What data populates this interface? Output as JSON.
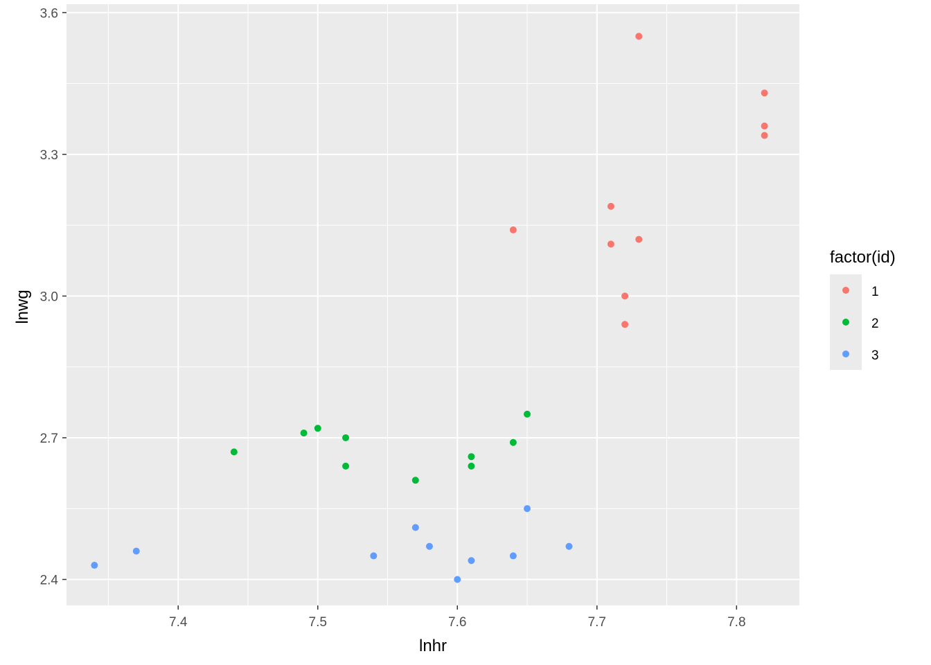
{
  "chart_data": {
    "type": "scatter",
    "xlabel": "lnhr",
    "ylabel": "lnwg",
    "xlim": [
      7.32,
      7.845
    ],
    "ylim": [
      2.345,
      3.618
    ],
    "x_ticks": [
      "7.4",
      "7.5",
      "7.6",
      "7.7",
      "7.8"
    ],
    "x_tick_values": [
      7.4,
      7.5,
      7.6,
      7.7,
      7.8
    ],
    "y_ticks": [
      "2.4",
      "2.7",
      "3.0",
      "3.3",
      "3.6"
    ],
    "y_tick_values": [
      2.4,
      2.7,
      3.0,
      3.3,
      3.6
    ],
    "grid": true,
    "legend": {
      "title": "factor(id)",
      "position": "right"
    },
    "series": [
      {
        "name": "1",
        "color": "#F8766D",
        "points": [
          [
            7.73,
            3.55
          ],
          [
            7.82,
            3.43
          ],
          [
            7.82,
            3.36
          ],
          [
            7.82,
            3.34
          ],
          [
            7.71,
            3.19
          ],
          [
            7.64,
            3.14
          ],
          [
            7.73,
            3.12
          ],
          [
            7.71,
            3.11
          ],
          [
            7.72,
            3.0
          ],
          [
            7.72,
            2.94
          ]
        ]
      },
      {
        "name": "2",
        "color": "#00BA38",
        "points": [
          [
            7.65,
            2.75
          ],
          [
            7.5,
            2.72
          ],
          [
            7.49,
            2.71
          ],
          [
            7.52,
            2.7
          ],
          [
            7.64,
            2.69
          ],
          [
            7.44,
            2.67
          ],
          [
            7.61,
            2.66
          ],
          [
            7.52,
            2.64
          ],
          [
            7.61,
            2.64
          ],
          [
            7.57,
            2.61
          ]
        ]
      },
      {
        "name": "3",
        "color": "#619CFF",
        "points": [
          [
            7.65,
            2.55
          ],
          [
            7.57,
            2.51
          ],
          [
            7.58,
            2.47
          ],
          [
            7.68,
            2.47
          ],
          [
            7.37,
            2.46
          ],
          [
            7.54,
            2.45
          ],
          [
            7.64,
            2.45
          ],
          [
            7.34,
            2.43
          ],
          [
            7.61,
            2.44
          ],
          [
            7.6,
            2.4
          ]
        ]
      }
    ]
  }
}
